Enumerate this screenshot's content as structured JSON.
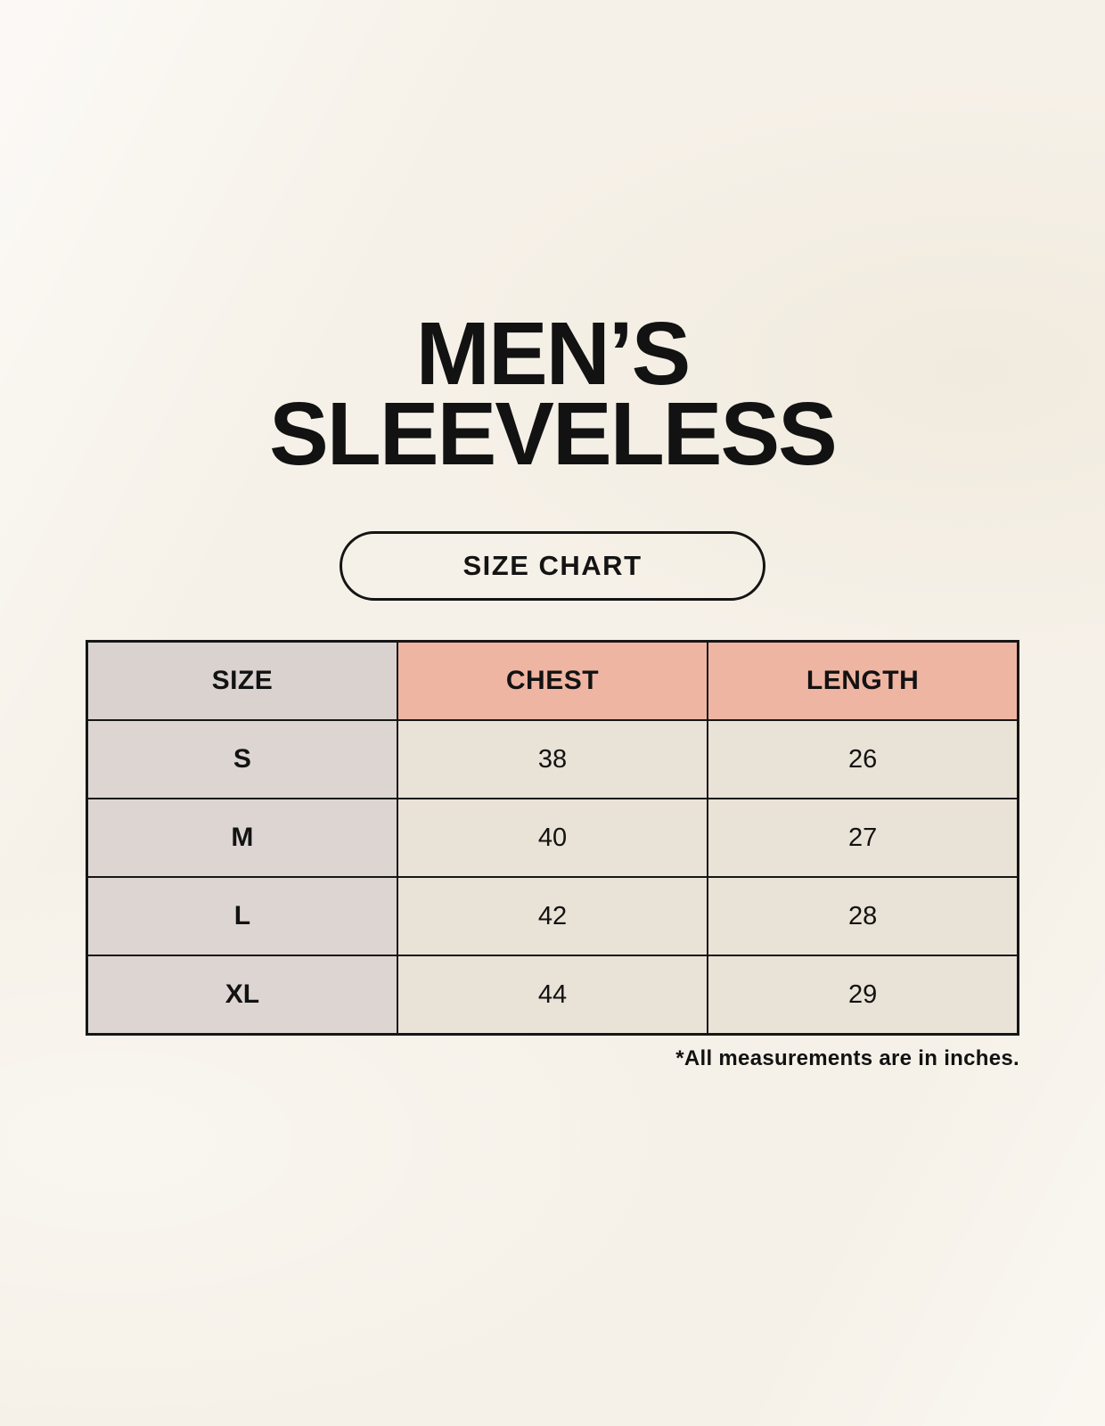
{
  "header": {
    "title_line1": "MEN’S",
    "title_line2": "SLEEVELESS",
    "badge_label": "SIZE CHART"
  },
  "chart_data": {
    "type": "table",
    "title": "SIZE CHART",
    "columns": [
      "SIZE",
      "CHEST",
      "LENGTH"
    ],
    "rows": [
      [
        "S",
        "38",
        "26"
      ],
      [
        "M",
        "40",
        "27"
      ],
      [
        "L",
        "42",
        "28"
      ],
      [
        "XL",
        "44",
        "29"
      ]
    ],
    "units_note": "*All measurements are in inches."
  },
  "footnote": "*All measurements are in inches.",
  "colors": {
    "background": "#f6f1e8",
    "accent_pink": "#efb5a3",
    "neutral_gray": "#d9d2cf",
    "cell_cream": "#e9e2d6",
    "border": "#161616",
    "text": "#121212"
  }
}
